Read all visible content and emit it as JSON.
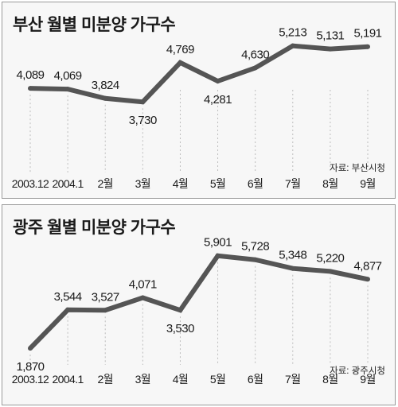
{
  "chart_data": [
    {
      "type": "line",
      "title": "부산 월별 미분양 가구수",
      "source": "자료: 부산시청",
      "categories": [
        "2003.12",
        "2004.1",
        "2월",
        "3월",
        "4월",
        "5월",
        "6월",
        "7월",
        "8월",
        "9월"
      ],
      "series": [
        {
          "values": [
            4089,
            4069,
            3824,
            3730,
            4769,
            4281,
            4630,
            5213,
            5131,
            5191
          ]
        }
      ],
      "value_labels": [
        "4,089",
        "4,069",
        "3,824",
        "3,730",
        "4,769",
        "4,281",
        "4,630",
        "5,213",
        "5,131",
        "5,191"
      ],
      "label_position": [
        "above",
        "above",
        "above",
        "below",
        "above",
        "below",
        "above",
        "above",
        "above",
        "above"
      ],
      "ylim": [
        3630,
        5290
      ],
      "line_color": "#555555",
      "grid": false
    },
    {
      "type": "line",
      "title": "광주 월별 미분양 가구수",
      "source": "자료: 광주시청",
      "categories": [
        "2003.12",
        "2004.1",
        "2월",
        "3월",
        "4월",
        "5월",
        "6월",
        "7월",
        "8월",
        "9월"
      ],
      "series": [
        {
          "values": [
            1870,
            3544,
            3527,
            4071,
            3530,
            5901,
            5728,
            5348,
            5220,
            4877
          ]
        }
      ],
      "value_labels": [
        "1,870",
        "3,544",
        "3,527",
        "4,071",
        "3,530",
        "5,901",
        "5,728",
        "5,348",
        "5,220",
        "4,877"
      ],
      "label_position": [
        "below",
        "above",
        "above",
        "above",
        "below",
        "above",
        "above",
        "above",
        "above",
        "above"
      ],
      "ylim": [
        1700,
        6100
      ],
      "line_color": "#555555",
      "grid": false
    }
  ]
}
